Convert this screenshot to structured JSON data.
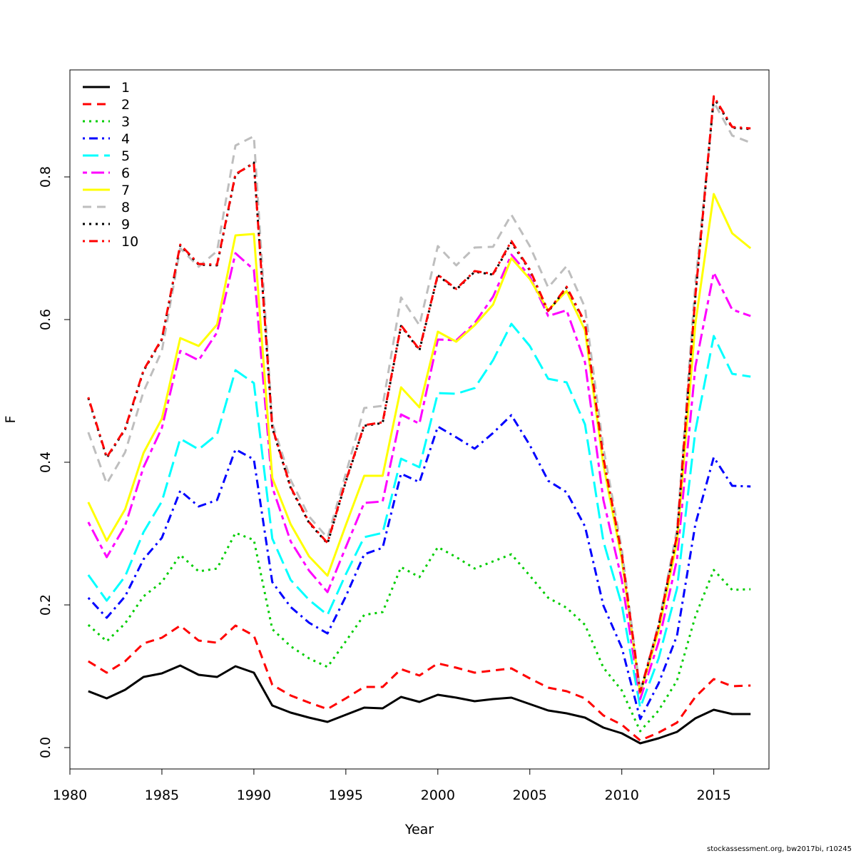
{
  "chart_data": {
    "type": "line",
    "xlabel": "Year",
    "ylabel": "F",
    "xlim": [
      1980,
      2018
    ],
    "ylim": [
      -0.03,
      0.95
    ],
    "xticks": [
      1980,
      1985,
      1990,
      1995,
      2000,
      2005,
      2010,
      2015
    ],
    "yticks": [
      0.0,
      0.2,
      0.4,
      0.6,
      0.8
    ],
    "legend_position": "top-left",
    "grid": false,
    "x": [
      1981,
      1982,
      1983,
      1984,
      1985,
      1986,
      1987,
      1988,
      1989,
      1990,
      1991,
      1992,
      1993,
      1994,
      1995,
      1996,
      1997,
      1998,
      1999,
      2000,
      2001,
      2002,
      2003,
      2004,
      2005,
      2006,
      2007,
      2008,
      2009,
      2010,
      2011,
      2012,
      2013,
      2014,
      2015,
      2016,
      2017
    ],
    "series": [
      {
        "name": "1",
        "color": "#000000",
        "dash": "solid",
        "values": [
          0.079,
          0.069,
          0.081,
          0.099,
          0.104,
          0.115,
          0.102,
          0.099,
          0.114,
          0.105,
          0.059,
          0.049,
          0.042,
          0.036,
          0.046,
          0.056,
          0.055,
          0.071,
          0.064,
          0.074,
          0.07,
          0.065,
          0.068,
          0.07,
          0.061,
          0.052,
          0.048,
          0.042,
          0.028,
          0.02,
          0.006,
          0.013,
          0.022,
          0.041,
          0.053,
          0.047,
          0.047
        ]
      },
      {
        "name": "2",
        "color": "#ff0000",
        "dash": "dashed",
        "values": [
          0.121,
          0.105,
          0.121,
          0.146,
          0.154,
          0.171,
          0.15,
          0.147,
          0.171,
          0.157,
          0.088,
          0.073,
          0.063,
          0.054,
          0.069,
          0.085,
          0.085,
          0.11,
          0.101,
          0.118,
          0.112,
          0.105,
          0.108,
          0.111,
          0.097,
          0.084,
          0.079,
          0.069,
          0.045,
          0.032,
          0.01,
          0.021,
          0.035,
          0.071,
          0.096,
          0.086,
          0.087
        ]
      },
      {
        "name": "3",
        "color": "#00cd00",
        "dash": "dotted",
        "values": [
          0.172,
          0.149,
          0.174,
          0.212,
          0.232,
          0.27,
          0.247,
          0.251,
          0.301,
          0.291,
          0.166,
          0.142,
          0.125,
          0.113,
          0.149,
          0.186,
          0.19,
          0.253,
          0.239,
          0.281,
          0.267,
          0.251,
          0.261,
          0.271,
          0.241,
          0.21,
          0.196,
          0.172,
          0.112,
          0.08,
          0.023,
          0.052,
          0.094,
          0.184,
          0.249,
          0.221,
          0.222
        ]
      },
      {
        "name": "4",
        "color": "#0000ff",
        "dash": "dotdash",
        "values": [
          0.21,
          0.182,
          0.212,
          0.264,
          0.294,
          0.36,
          0.338,
          0.347,
          0.418,
          0.404,
          0.232,
          0.197,
          0.175,
          0.16,
          0.212,
          0.271,
          0.28,
          0.384,
          0.372,
          0.45,
          0.435,
          0.419,
          0.441,
          0.466,
          0.424,
          0.374,
          0.358,
          0.31,
          0.199,
          0.14,
          0.04,
          0.09,
          0.157,
          0.313,
          0.407,
          0.367,
          0.366
        ]
      },
      {
        "name": "5",
        "color": "#00ffff",
        "dash": "longdash",
        "values": [
          0.242,
          0.206,
          0.24,
          0.302,
          0.345,
          0.433,
          0.418,
          0.439,
          0.529,
          0.511,
          0.293,
          0.235,
          0.207,
          0.186,
          0.243,
          0.295,
          0.301,
          0.405,
          0.393,
          0.497,
          0.496,
          0.504,
          0.543,
          0.594,
          0.563,
          0.517,
          0.512,
          0.453,
          0.289,
          0.2,
          0.056,
          0.125,
          0.223,
          0.444,
          0.577,
          0.524,
          0.52
        ]
      },
      {
        "name": "6",
        "color": "#ff00ff",
        "dash": "twodash",
        "values": [
          0.316,
          0.267,
          0.311,
          0.393,
          0.448,
          0.556,
          0.543,
          0.582,
          0.693,
          0.67,
          0.365,
          0.289,
          0.248,
          0.218,
          0.281,
          0.343,
          0.345,
          0.467,
          0.454,
          0.572,
          0.571,
          0.595,
          0.632,
          0.691,
          0.661,
          0.605,
          0.613,
          0.54,
          0.347,
          0.235,
          0.068,
          0.148,
          0.264,
          0.534,
          0.666,
          0.614,
          0.605
        ]
      },
      {
        "name": "7",
        "color": "#ffff00",
        "dash": "solid",
        "values": [
          0.344,
          0.29,
          0.334,
          0.413,
          0.461,
          0.574,
          0.563,
          0.593,
          0.718,
          0.72,
          0.378,
          0.313,
          0.268,
          0.241,
          0.312,
          0.381,
          0.381,
          0.505,
          0.477,
          0.583,
          0.569,
          0.592,
          0.621,
          0.686,
          0.657,
          0.613,
          0.64,
          0.585,
          0.396,
          0.264,
          0.076,
          0.164,
          0.288,
          0.594,
          0.776,
          0.721,
          0.7
        ]
      },
      {
        "name": "8",
        "color": "#bebebe",
        "dash": "dashed",
        "values": [
          0.442,
          0.37,
          0.414,
          0.499,
          0.556,
          0.7,
          0.674,
          0.696,
          0.844,
          0.857,
          0.455,
          0.375,
          0.324,
          0.294,
          0.384,
          0.476,
          0.479,
          0.631,
          0.592,
          0.703,
          0.676,
          0.701,
          0.702,
          0.747,
          0.703,
          0.645,
          0.675,
          0.617,
          0.42,
          0.278,
          0.079,
          0.173,
          0.306,
          0.651,
          0.905,
          0.858,
          0.848
        ]
      },
      {
        "name": "9",
        "color": "#000000",
        "dash": "dotted",
        "values": [
          0.49,
          0.406,
          0.446,
          0.528,
          0.572,
          0.704,
          0.677,
          0.676,
          0.803,
          0.82,
          0.448,
          0.364,
          0.315,
          0.286,
          0.373,
          0.451,
          0.455,
          0.591,
          0.557,
          0.662,
          0.642,
          0.667,
          0.663,
          0.708,
          0.669,
          0.611,
          0.645,
          0.595,
          0.405,
          0.27,
          0.077,
          0.17,
          0.297,
          0.632,
          0.911,
          0.869,
          0.867
        ]
      },
      {
        "name": "10",
        "color": "#ff0000",
        "dash": "dotdash",
        "values": [
          0.491,
          0.407,
          0.447,
          0.529,
          0.573,
          0.705,
          0.678,
          0.677,
          0.804,
          0.819,
          0.449,
          0.365,
          0.316,
          0.287,
          0.374,
          0.452,
          0.456,
          0.592,
          0.558,
          0.663,
          0.643,
          0.668,
          0.664,
          0.71,
          0.67,
          0.612,
          0.646,
          0.596,
          0.406,
          0.271,
          0.078,
          0.171,
          0.298,
          0.633,
          0.913,
          0.87,
          0.868
        ]
      }
    ]
  },
  "footnote": "stockassessment.org, bw2017bi, r10245"
}
